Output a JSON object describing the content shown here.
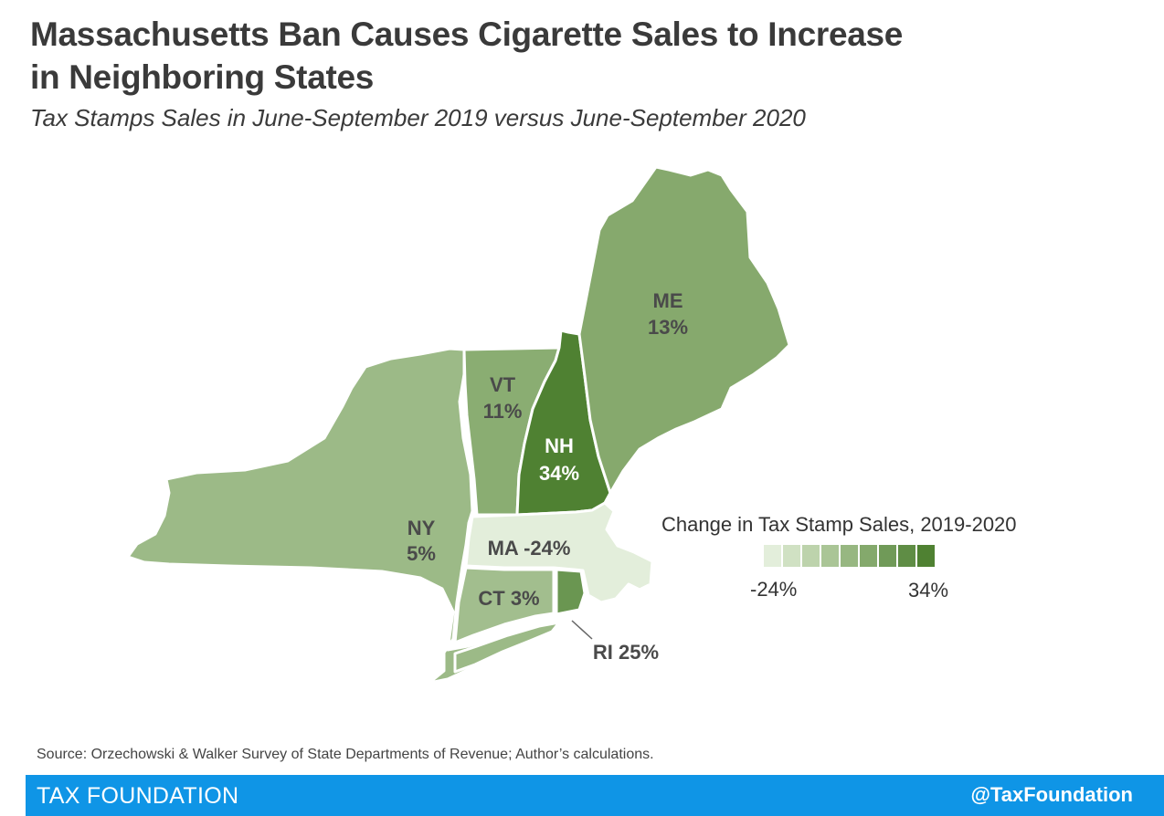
{
  "header": {
    "title_line1": "Massachusetts Ban Causes Cigarette Sales to Increase",
    "title_line2": "in Neighboring States",
    "subtitle": "Tax Stamps Sales in June-September 2019 versus June-September 2020"
  },
  "states": [
    {
      "abbr": "ME",
      "value": "13%",
      "color": "#86a96d"
    },
    {
      "abbr": "VT",
      "value": "11%",
      "color": "#8aad72"
    },
    {
      "abbr": "NH",
      "value": "34%",
      "color": "#4f8132"
    },
    {
      "abbr": "NY",
      "value": "5%",
      "color": "#9cba87"
    },
    {
      "abbr": "MA",
      "value": "-24%",
      "color": "#e3eedb"
    },
    {
      "abbr": "CT",
      "value": "3%",
      "color": "#a2be8e"
    },
    {
      "abbr": "RI",
      "value": "25%",
      "color": "#6a9651"
    }
  ],
  "labels": {
    "me": "ME",
    "me_val": "13%",
    "vt": "VT",
    "vt_val": "11%",
    "nh": "NH",
    "nh_val": "34%",
    "ny": "NY",
    "ny_val": "5%",
    "ma": "MA -24%",
    "ct": "CT 3%",
    "ri": "RI 25%"
  },
  "legend": {
    "title": "Change in Tax Stamp Sales, 2019-2020",
    "min_label": "-24%",
    "max_label": "34%",
    "colors": [
      "#e3eedb",
      "#d0e1c3",
      "#bdd3ac",
      "#aac596",
      "#97b781",
      "#84a96c",
      "#709a58",
      "#5f8d45",
      "#4f8132"
    ]
  },
  "source": "Source: Orzechowski & Walker Survey of State Departments of Revenue; Author’s calculations.",
  "footer": {
    "brand": "TAX FOUNDATION",
    "handle": "@TaxFoundation",
    "background": "#0f95e6"
  }
}
